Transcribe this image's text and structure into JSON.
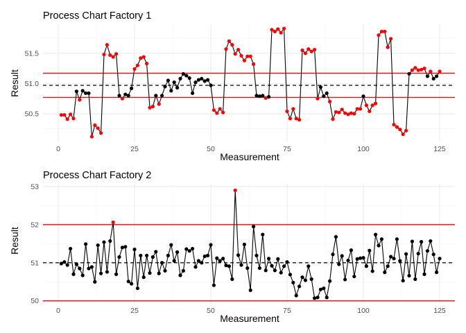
{
  "chart_data": [
    {
      "type": "line",
      "title": "Process Chart Factory 1",
      "xlabel": "Measurement",
      "ylabel": "Result",
      "xlim": [
        -5,
        130
      ],
      "ylim": [
        50.04,
        51.98
      ],
      "xticks": [
        0,
        25,
        50,
        75,
        100,
        125
      ],
      "yticks": [
        50.5,
        51.0,
        51.5
      ],
      "ytick_labels": [
        "50.5",
        "51.0",
        "51.5"
      ],
      "reference_lines": {
        "center": 50.97,
        "upper": 51.17,
        "lower": 50.77
      },
      "colors": {
        "in_control": "#000000",
        "out_of_control": "#ff0000",
        "limit_line": "#ff0000",
        "center_line": "#000000"
      },
      "grid": true,
      "series": [
        {
          "x": [
            1,
            2,
            3,
            4,
            5,
            6,
            7,
            8,
            9,
            10,
            11,
            12,
            13,
            14,
            15,
            16,
            17,
            18,
            19,
            20,
            21,
            22,
            23,
            24,
            25,
            26,
            27,
            28,
            29,
            30,
            31,
            32,
            33,
            34,
            35,
            36,
            37,
            38,
            39,
            40,
            41,
            42,
            43,
            44,
            45,
            46,
            47,
            48,
            49,
            50,
            51,
            52,
            53,
            54,
            55,
            56,
            57,
            58,
            59,
            60,
            61,
            62,
            63,
            64,
            65,
            66,
            67,
            68,
            69,
            70,
            71,
            72,
            73,
            74,
            75,
            76,
            77,
            78,
            79,
            80,
            81,
            82,
            83,
            84,
            85,
            86,
            87,
            88,
            89,
            90,
            91,
            92,
            93,
            94,
            95,
            96,
            97,
            98,
            99,
            100,
            101,
            102,
            103,
            104,
            105,
            106,
            107,
            108,
            109,
            110,
            111,
            112,
            113,
            114,
            115,
            116,
            117,
            118,
            119,
            120,
            121,
            122,
            123,
            124,
            125
          ],
          "y": [
            50.48,
            50.48,
            50.41,
            50.49,
            50.42,
            50.87,
            50.73,
            50.88,
            50.84,
            50.84,
            50.12,
            50.31,
            50.26,
            50.18,
            51.48,
            51.64,
            51.47,
            51.44,
            51.49,
            50.8,
            50.75,
            50.82,
            50.8,
            50.92,
            51.24,
            51.3,
            51.42,
            51.44,
            51.33,
            50.6,
            50.62,
            50.8,
            50.66,
            50.8,
            50.95,
            51.05,
            50.88,
            51.02,
            50.93,
            51.08,
            51.16,
            51.13,
            51.09,
            50.84,
            51.02,
            51.06,
            51.08,
            51.04,
            51.06,
            50.97,
            50.56,
            50.51,
            50.58,
            50.52,
            51.57,
            51.7,
            51.64,
            51.49,
            51.56,
            51.46,
            51.38,
            51.45,
            51.45,
            51.32,
            50.8,
            50.79,
            50.8,
            50.76,
            50.78,
            51.89,
            51.86,
            51.9,
            51.84,
            51.91,
            50.54,
            50.42,
            50.58,
            50.42,
            50.4,
            51.55,
            51.5,
            51.57,
            51.53,
            51.56,
            50.75,
            50.94,
            50.79,
            50.84,
            50.7,
            50.41,
            50.53,
            50.52,
            50.57,
            50.51,
            50.49,
            50.51,
            50.5,
            50.58,
            50.58,
            50.79,
            50.64,
            50.54,
            50.64,
            50.67,
            51.8,
            51.86,
            51.86,
            51.6,
            51.74,
            50.32,
            50.28,
            50.24,
            50.16,
            50.22,
            51.16,
            51.22,
            51.26,
            51.22,
            51.23,
            51.25,
            51.12,
            51.2,
            51.08,
            51.12,
            51.2
          ]
        }
      ]
    },
    {
      "type": "line",
      "title": "Process Chart Factory 2",
      "xlabel": "Measurement",
      "ylabel": "Result",
      "xlim": [
        -5,
        130
      ],
      "ylim": [
        49.94,
        53.07
      ],
      "xticks": [
        0,
        25,
        50,
        75,
        100,
        125
      ],
      "yticks": [
        50,
        51,
        52,
        53
      ],
      "ytick_labels": [
        "50",
        "51",
        "52",
        "53"
      ],
      "reference_lines": {
        "center": 51.0,
        "upper": 52.0,
        "lower": 50.0
      },
      "colors": {
        "in_control": "#000000",
        "out_of_control": "#ff0000",
        "limit_line": "#ff0000",
        "center_line": "#000000"
      },
      "grid": true,
      "series": [
        {
          "x": [
            1,
            2,
            3,
            4,
            5,
            6,
            7,
            8,
            9,
            10,
            11,
            12,
            13,
            14,
            15,
            16,
            17,
            18,
            19,
            20,
            21,
            22,
            23,
            24,
            25,
            26,
            27,
            28,
            29,
            30,
            31,
            32,
            33,
            34,
            35,
            36,
            37,
            38,
            39,
            40,
            41,
            42,
            43,
            44,
            45,
            46,
            47,
            48,
            49,
            50,
            51,
            52,
            53,
            54,
            55,
            56,
            57,
            58,
            59,
            60,
            61,
            62,
            63,
            64,
            65,
            66,
            67,
            68,
            69,
            70,
            71,
            72,
            73,
            74,
            75,
            76,
            77,
            78,
            79,
            80,
            81,
            82,
            83,
            84,
            85,
            86,
            87,
            88,
            89,
            90,
            91,
            92,
            93,
            94,
            95,
            96,
            97,
            98,
            99,
            100,
            101,
            102,
            103,
            104,
            105,
            106,
            107,
            108,
            109,
            110,
            111,
            112,
            113,
            114,
            115,
            116,
            117,
            118,
            119,
            120,
            121,
            122,
            123,
            124,
            125
          ],
          "y": [
            50.98,
            51.02,
            50.94,
            51.37,
            50.7,
            50.96,
            50.85,
            50.67,
            51.49,
            50.85,
            50.89,
            50.5,
            51.46,
            50.72,
            51.54,
            50.76,
            51.57,
            52.06,
            50.7,
            51.15,
            51.4,
            51.42,
            50.51,
            50.45,
            51.35,
            50.33,
            51.19,
            50.62,
            51.19,
            50.73,
            51.15,
            51.29,
            50.72,
            51.0,
            50.79,
            51.19,
            51.47,
            51.05,
            51.28,
            50.67,
            50.79,
            51.36,
            51.31,
            51.37,
            50.89,
            51.05,
            51.0,
            51.17,
            51.19,
            51.47,
            50.41,
            51.12,
            51.05,
            51.11,
            50.93,
            50.91,
            50.57,
            52.9,
            51.2,
            50.94,
            51.48,
            50.86,
            50.28,
            51.95,
            51.19,
            50.86,
            51.74,
            50.8,
            51.11,
            50.92,
            50.8,
            51.1,
            50.74,
            50.91,
            51.02,
            50.69,
            50.48,
            50.14,
            50.38,
            50.62,
            50.54,
            50.91,
            50.57,
            50.07,
            50.09,
            50.3,
            50.33,
            50.09,
            50.52,
            51.22,
            51.68,
            50.96,
            51.18,
            50.56,
            51.06,
            51.33,
            50.64,
            51.1,
            51.12,
            51.13,
            50.91,
            51.32,
            50.78,
            51.74,
            51.45,
            51.62,
            50.75,
            50.91,
            51.16,
            51.11,
            51.62,
            51.05,
            50.53,
            51.23,
            50.66,
            51.56,
            50.57,
            51.24,
            51.55,
            50.7,
            51.31,
            51.57,
            51.22,
            50.75,
            51.11
          ]
        }
      ]
    }
  ]
}
